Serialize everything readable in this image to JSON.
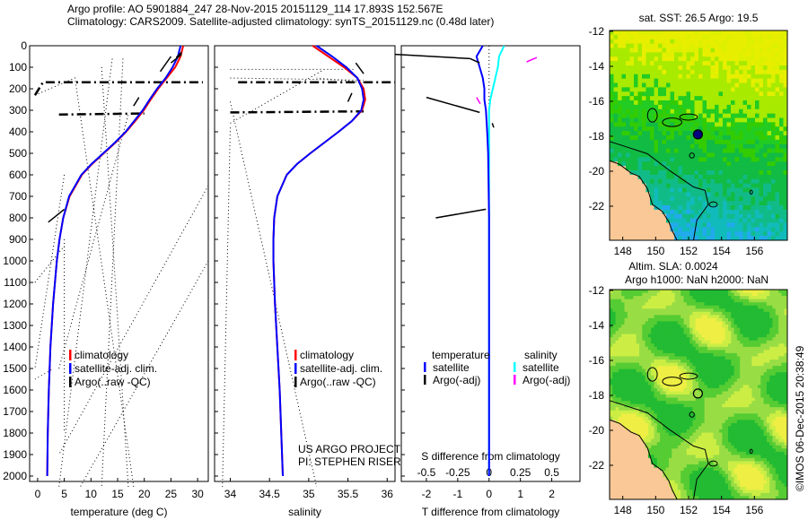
{
  "title": {
    "line1": "Argo profile: AO 5901884_247 28-Nov-2015 20151129_114 17.893S 152.567E",
    "line2": "Climatology: CARS2009. Satellite-adjusted climatology: synTS_20151129.nc (0.48d later)"
  },
  "copyright": "©IMOS 06-Dec-2015 20:38:49",
  "colors": {
    "climatology": "#ff0000",
    "satellite": "#0000ff",
    "argo": "#000000",
    "sal_satellite": "#00ffff",
    "sal_argo": "#ff00ff",
    "land": "#f9c896",
    "marker": "#000080"
  },
  "chart_data": [
    {
      "type": "line",
      "name": "temperature",
      "xlabel": "temperature (deg C)",
      "xlim": [
        -1.5,
        32
      ],
      "ylim": [
        0,
        2050
      ],
      "xticks": [
        0,
        5,
        10,
        15,
        20,
        25,
        30
      ],
      "yticks": [
        0,
        100,
        200,
        300,
        400,
        500,
        600,
        700,
        800,
        900,
        1000,
        1100,
        1200,
        1300,
        1400,
        1500,
        1600,
        1700,
        1800,
        1900,
        2000
      ],
      "legend": [
        "climatology",
        "satellite-adj. clim.",
        "Argo(..raw -QC)"
      ],
      "depth": [
        0,
        50,
        100,
        150,
        200,
        250,
        300,
        350,
        400,
        450,
        500,
        550,
        600,
        700,
        800,
        900,
        1000,
        1200,
        1400,
        1600,
        1800,
        2000
      ],
      "climatology": [
        27.3,
        26.8,
        25.8,
        24.2,
        22.6,
        21.2,
        19.9,
        18.3,
        16.6,
        14.6,
        12.4,
        10.2,
        8.3,
        6.0,
        4.8,
        4.1,
        3.6,
        2.9,
        2.4,
        2.1,
        1.9,
        1.8
      ],
      "satellite": [
        26.8,
        26.3,
        25.3,
        24.0,
        22.4,
        21.0,
        19.7,
        18.1,
        16.5,
        14.5,
        12.3,
        10.1,
        8.2,
        5.9,
        4.8,
        4.1,
        3.6,
        2.9,
        2.4,
        2.1,
        1.9,
        1.8
      ],
      "argo_segments": [
        [
          [
            23,
            120
          ],
          [
            25,
            50
          ]
        ],
        [
          [
            25,
            80
          ],
          [
            27,
            40
          ]
        ],
        [
          [
            26,
            55
          ],
          [
            27,
            30
          ]
        ],
        [
          [
            18,
            280
          ],
          [
            19,
            240
          ]
        ],
        [
          [
            2,
            820
          ],
          [
            5,
            760
          ]
        ]
      ],
      "dashdot": [
        [
          [
            -0.5,
            230
          ],
          [
            1,
            170
          ],
          [
            31,
            170
          ]
        ],
        [
          [
            4,
            320
          ],
          [
            20,
            315
          ]
        ]
      ],
      "dotted": [
        [
          [
            -0.5,
            230
          ],
          [
            7,
            150
          ],
          [
            18,
            2050
          ]
        ],
        [
          [
            14,
            60
          ],
          [
            4,
            2050
          ]
        ],
        [
          [
            12,
            100
          ],
          [
            17,
            2050
          ]
        ],
        [
          [
            16,
            60
          ],
          [
            12,
            2050
          ]
        ],
        [
          [
            5,
            900
          ],
          [
            5,
            1800
          ]
        ],
        [
          [
            32,
            650
          ],
          [
            4,
            1900
          ]
        ],
        [
          [
            -0.5,
            1100
          ],
          [
            5,
            930
          ]
        ],
        [
          [
            5,
            600
          ],
          [
            -0.5,
            1500
          ]
        ],
        [
          [
            -0.5,
            1550
          ],
          [
            3,
            1500
          ]
        ],
        [
          [
            32,
            1000
          ],
          [
            8,
            2050
          ]
        ],
        [
          [
            4,
            1500
          ],
          [
            17,
            320
          ]
        ]
      ]
    },
    {
      "type": "line",
      "name": "salinity",
      "xlabel": "salinity",
      "xlim": [
        33.8,
        36.1
      ],
      "ylim": [
        0,
        2050
      ],
      "xticks": [
        34,
        34.5,
        35,
        35.5,
        36
      ],
      "legend": [
        "climatology",
        "satellite-adj. clim.",
        "Argo(..raw -QC)"
      ],
      "annotation": [
        "US ARGO PROJECT",
        "PI: STEPHEN RISER"
      ],
      "depth": [
        0,
        50,
        100,
        150,
        200,
        250,
        300,
        350,
        400,
        450,
        500,
        550,
        600,
        700,
        800,
        900,
        1000,
        1200,
        1400,
        1600,
        1800,
        2000
      ],
      "climatology": [
        35.05,
        35.25,
        35.45,
        35.62,
        35.7,
        35.72,
        35.68,
        35.55,
        35.38,
        35.2,
        35.02,
        34.85,
        34.72,
        34.6,
        34.56,
        34.55,
        34.55,
        34.57,
        34.6,
        34.63,
        34.65,
        34.67
      ],
      "satellite": [
        35.1,
        35.3,
        35.48,
        35.62,
        35.68,
        35.7,
        35.67,
        35.55,
        35.38,
        35.2,
        35.02,
        34.85,
        34.72,
        34.6,
        34.56,
        34.55,
        34.55,
        34.57,
        34.6,
        34.63,
        34.65,
        34.67
      ],
      "argo_segments": [
        [
          [
            35.6,
            80
          ],
          [
            35.7,
            130
          ]
        ],
        [
          [
            35.5,
            260
          ],
          [
            35.55,
            220
          ]
        ]
      ],
      "dashdot": [
        [
          [
            34.1,
            170
          ],
          [
            36.1,
            170
          ]
        ],
        [
          [
            34.0,
            310
          ],
          [
            35.7,
            305
          ]
        ]
      ],
      "dotted": [
        [
          [
            34.0,
            110
          ],
          [
            35.6,
            110
          ]
        ],
        [
          [
            34.0,
            150
          ],
          [
            35.7,
            160
          ]
        ],
        [
          [
            34.0,
            360
          ],
          [
            35.2,
            110
          ]
        ],
        [
          [
            34.0,
            260
          ],
          [
            35.1,
            2050
          ]
        ],
        [
          [
            34.0,
            380
          ],
          [
            33.9,
            2050
          ]
        ],
        [
          [
            35.7,
            170
          ],
          [
            35.1,
            150
          ]
        ]
      ]
    },
    {
      "type": "line",
      "name": "difference",
      "xlabel": "T difference from climatology",
      "x2label": "S difference from climatology",
      "xlim": [
        -2.8,
        2.9
      ],
      "x2lim": [
        -0.7,
        0.725
      ],
      "ylim": [
        0,
        2050
      ],
      "xticks": [
        -2,
        -1,
        0,
        1,
        2
      ],
      "x2ticks": [
        -0.5,
        -0.25,
        0,
        0.25,
        0.5
      ],
      "legend_t": {
        "title": "temperature",
        "items": [
          "satellite",
          "Argo(-adj)"
        ]
      },
      "legend_s": {
        "title": "salinity",
        "items": [
          "satellite",
          "Argo(-adj)"
        ]
      },
      "depth": [
        0,
        50,
        100,
        150,
        200,
        250,
        300,
        350,
        400,
        500,
        600,
        800,
        1000,
        1500,
        2000
      ],
      "t_satellite": [
        -0.2,
        -0.4,
        -0.3,
        -0.2,
        -0.15,
        -0.15,
        -0.1,
        -0.08,
        -0.06,
        -0.03,
        -0.02,
        0,
        0,
        0,
        0
      ],
      "s_satellite": [
        0.12,
        0.08,
        0.07,
        0.05,
        0.03,
        0.01,
        0.0,
        0.0,
        0.0,
        0.0,
        0.0,
        0.0,
        0.0,
        0.0,
        0.0
      ],
      "argo_segments": [
        [
          [
            -3,
            40
          ],
          [
            -0.6,
            60
          ]
        ],
        [
          [
            -0.6,
            60
          ],
          [
            -0.3,
            80
          ]
        ],
        [
          [
            -2,
            240
          ],
          [
            -0.3,
            310
          ]
        ],
        [
          [
            -1.7,
            800
          ],
          [
            -0.1,
            760
          ]
        ],
        [
          [
            0.1,
            360
          ],
          [
            0.15,
            380
          ]
        ]
      ],
      "s_argo_segments": [
        [
          [
            0.3,
            75
          ],
          [
            0.38,
            55
          ]
        ],
        [
          [
            -0.1,
            240
          ],
          [
            -0.07,
            270
          ]
        ]
      ]
    }
  ],
  "maps": [
    {
      "name": "sst-map",
      "title": "sat. SST: 26.5 Argo: 19.5",
      "lat_ticks": [
        "-12",
        "-14",
        "-16",
        "-18",
        "-20",
        "-22"
      ],
      "lon_ticks": [
        "148",
        "150",
        "152",
        "154",
        "156"
      ],
      "argo_lon": 152.567,
      "argo_lat": -17.893
    },
    {
      "name": "sla-map",
      "title": "Altim. SLA: 0.0024",
      "subtitle": "Argo h1000: NaN h2000: NaN",
      "lat_ticks": [
        "-12",
        "-14",
        "-16",
        "-18",
        "-20",
        "-22"
      ],
      "lon_ticks": [
        "148",
        "150",
        "152",
        "154",
        "156"
      ],
      "argo_lon": 152.567,
      "argo_lat": -17.893
    }
  ]
}
